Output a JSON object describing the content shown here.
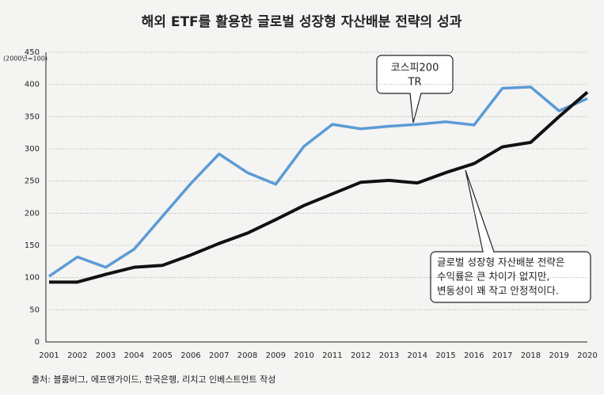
{
  "chart_data": {
    "type": "line",
    "title": "해외 ETF를 활용한 글로벌 성장형 자산배분 전략의 성과",
    "y_label": "(2000년=100)",
    "source": "출처: 블룸버그, 에프앤가이드, 한국은행, 리치고 인베스트먼트 작성",
    "categories": [
      "2001",
      "2002",
      "2003",
      "2004",
      "2005",
      "2006",
      "2007",
      "2008",
      "2009",
      "2010",
      "2011",
      "2012",
      "2013",
      "2014",
      "2015",
      "2016",
      "2017",
      "2018",
      "2019",
      "2020"
    ],
    "series": [
      {
        "color": "#5b9bd5",
        "values": [
          102,
          132,
          116,
          144,
          195,
          246,
          292,
          263,
          245,
          304,
          338,
          331,
          335,
          338,
          342,
          337,
          394,
          396,
          359,
          378
        ]
      },
      {
        "color": "#111111",
        "values": [
          93,
          93,
          105,
          116,
          119,
          135,
          153,
          169,
          190,
          212,
          230,
          248,
          251,
          247,
          263,
          277,
          303,
          310,
          350,
          388
        ]
      }
    ],
    "annotations": [
      {
        "lines": [
          "코스피200",
          "TR"
        ]
      },
      {
        "lines": [
          "글로벌 성장형 자산배분 전략은",
          "수익률은 큰 차이가 없지만,",
          "변동성이 꽤 작고 안정적이다."
        ]
      }
    ],
    "ylim": [
      0,
      450
    ],
    "yticks": [
      0,
      50,
      100,
      150,
      200,
      250,
      300,
      350,
      400,
      450
    ],
    "grid": true
  }
}
